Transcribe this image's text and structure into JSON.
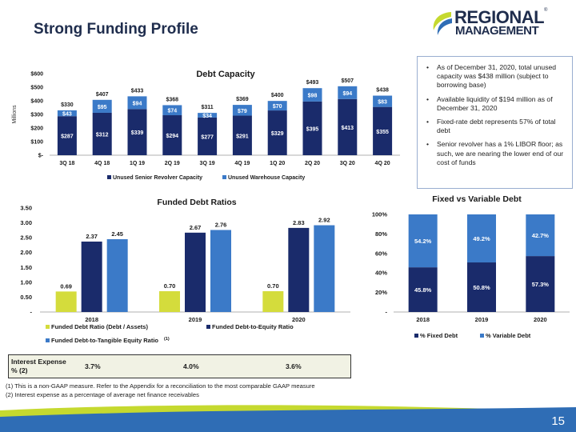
{
  "header": {
    "title": "Strong Funding Profile"
  },
  "logo": {
    "line1": "REGIONAL",
    "line2": "MANAGEMENT",
    "mark": "®"
  },
  "colors": {
    "navy": "#1a2b6b",
    "mid_blue": "#3b7ac8",
    "green": "#d4dc3c",
    "band_blue": "#2f6db5",
    "band_green": "#c5d92f"
  },
  "bullets": [
    "As of December 31, 2020, total unused capacity was $438 million (subject to borrowing base)",
    "Available liquidity of $194 million as of December 31, 2020",
    "Fixed-rate debt represents 57% of total debt",
    "Senior revolver has a 1% LIBOR floor; as such, we are nearing the lower end of our cost of funds"
  ],
  "interest": {
    "label": "Interest Expense % (2)",
    "values": [
      "3.7%",
      "4.0%",
      "3.6%"
    ]
  },
  "footnotes": [
    "(1)   This is a non-GAAP measure. Refer to the Appendix for a reconciliation to the most comparable GAAP measure",
    "(2)   Interest expense as a percentage of average net finance receivables"
  ],
  "page_number": "15",
  "chart_data": [
    {
      "type": "bar",
      "title": "Debt Capacity",
      "ylabel": "Millions",
      "ylim": [
        0,
        600
      ],
      "yticks": [
        "$-",
        "$100",
        "$200",
        "$300",
        "$400",
        "$500",
        "$600"
      ],
      "categories": [
        "3Q 18",
        "4Q 18",
        "1Q 19",
        "2Q 19",
        "3Q 19",
        "4Q 19",
        "1Q 20",
        "2Q 20",
        "3Q 20",
        "4Q 20"
      ],
      "stacked": true,
      "series": [
        {
          "name": "Unused Senior Revolver Capacity",
          "values": [
            287,
            312,
            339,
            294,
            277,
            291,
            329,
            395,
            413,
            355
          ],
          "labels": [
            "$287",
            "$312",
            "$339",
            "$294",
            "$277",
            "$291",
            "$329",
            "$395",
            "$413",
            "$355"
          ]
        },
        {
          "name": "Unused Warehouse Capacity",
          "values": [
            43,
            95,
            94,
            74,
            34,
            79,
            70,
            98,
            94,
            83
          ],
          "labels": [
            "$43",
            "$95",
            "$94",
            "$74",
            "$34",
            "$79",
            "$70",
            "$98",
            "$94",
            "$83"
          ]
        }
      ],
      "totals": [
        "$330",
        "$407",
        "$433",
        "$368",
        "$311",
        "$369",
        "$400",
        "$493",
        "$507",
        "$438"
      ],
      "legend": "bottom"
    },
    {
      "type": "bar",
      "title": "Funded Debt Ratios",
      "ylim": [
        0,
        3.5
      ],
      "yticks": [
        "-",
        "0.50",
        "1.00",
        "1.50",
        "2.00",
        "2.50",
        "3.00",
        "3.50"
      ],
      "categories": [
        "2018",
        "2019",
        "2020"
      ],
      "series": [
        {
          "name": "Funded Debt Ratio (Debt / Assets)",
          "values": [
            0.69,
            0.7,
            0.7
          ],
          "labels": [
            "0.69",
            "0.70",
            "0.70"
          ]
        },
        {
          "name": "Funded Debt-to-Equity Ratio",
          "values": [
            2.37,
            2.67,
            2.83
          ],
          "labels": [
            "2.37",
            "2.67",
            "2.83"
          ]
        },
        {
          "name": "Funded Debt-to-Tangible Equity Ratio",
          "note": "(1)",
          "values": [
            2.45,
            2.76,
            2.92
          ],
          "labels": [
            "2.45",
            "2.76",
            "2.92"
          ]
        }
      ],
      "legend": "bottom"
    },
    {
      "type": "bar",
      "title": "Fixed vs Variable Debt",
      "ylim": [
        0,
        100
      ],
      "yticks": [
        "-",
        "20%",
        "40%",
        "60%",
        "80%",
        "100%"
      ],
      "categories": [
        "2018",
        "2019",
        "2020"
      ],
      "stacked": true,
      "series": [
        {
          "name": "% Fixed Debt",
          "values": [
            45.8,
            50.8,
            57.3
          ],
          "labels": [
            "45.8%",
            "50.8%",
            "57.3%"
          ]
        },
        {
          "name": "% Variable Debt",
          "values": [
            54.2,
            49.2,
            42.7
          ],
          "labels": [
            "54.2%",
            "49.2%",
            "42.7%"
          ]
        }
      ],
      "legend": "bottom"
    }
  ]
}
